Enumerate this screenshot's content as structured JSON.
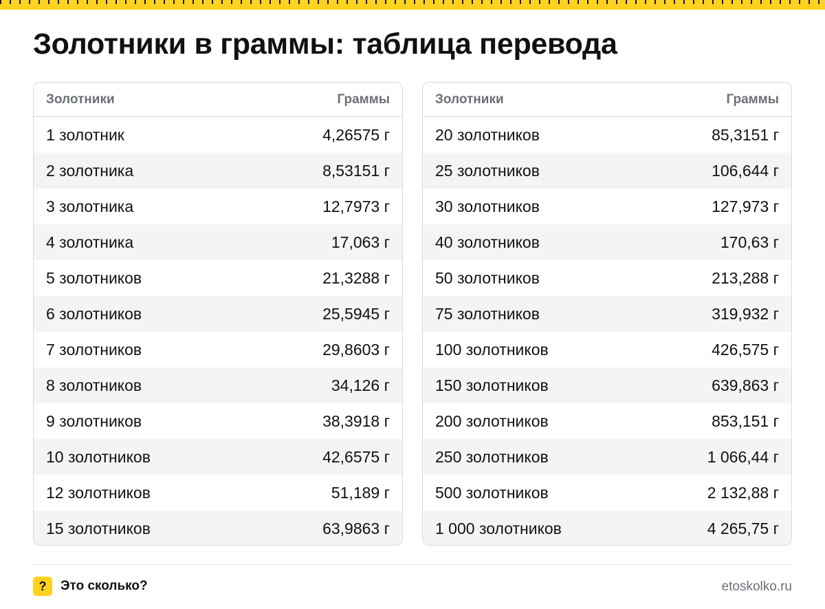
{
  "title": "Золотники в граммы: таблица перевода",
  "colors": {
    "accent": "#ffd21f",
    "header_text": "#6b7076",
    "stripe": "#f3f4f6",
    "border": "#d6d9de"
  },
  "tables": [
    {
      "header": {
        "from": "Золотники",
        "to": "Граммы"
      },
      "rows": [
        {
          "from": "1 золотник",
          "to": "4,26575 г"
        },
        {
          "from": "2 золотника",
          "to": "8,53151 г"
        },
        {
          "from": "3 золотника",
          "to": "12,7973 г"
        },
        {
          "from": "4 золотника",
          "to": "17,063 г"
        },
        {
          "from": "5 золотников",
          "to": "21,3288 г"
        },
        {
          "from": "6 золотников",
          "to": "25,5945 г"
        },
        {
          "from": "7 золотников",
          "to": "29,8603 г"
        },
        {
          "from": "8 золотников",
          "to": "34,126 г"
        },
        {
          "from": "9 золотников",
          "to": "38,3918 г"
        },
        {
          "from": "10 золотников",
          "to": "42,6575 г"
        },
        {
          "from": "12 золотников",
          "to": "51,189 г"
        },
        {
          "from": "15 золотников",
          "to": "63,9863 г"
        }
      ]
    },
    {
      "header": {
        "from": "Золотники",
        "to": "Граммы"
      },
      "rows": [
        {
          "from": "20 золотников",
          "to": "85,3151 г"
        },
        {
          "from": "25 золотников",
          "to": "106,644 г"
        },
        {
          "from": "30 золотников",
          "to": "127,973 г"
        },
        {
          "from": "40 золотников",
          "to": "170,63 г"
        },
        {
          "from": "50 золотников",
          "to": "213,288 г"
        },
        {
          "from": "75 золотников",
          "to": "319,932 г"
        },
        {
          "from": "100 золотников",
          "to": "426,575 г"
        },
        {
          "from": "150 золотников",
          "to": "639,863 г"
        },
        {
          "from": "200 золотников",
          "to": "853,151 г"
        },
        {
          "from": "250 золотников",
          "to": "1 066,44 г"
        },
        {
          "from": "500 золотников",
          "to": "2 132,88 г"
        },
        {
          "from": "1 000 золотников",
          "to": "4 265,75 г"
        }
      ]
    }
  ],
  "footer": {
    "icon": "question-mark-icon",
    "icon_glyph": "?",
    "brand": "Это сколько?",
    "site": "etoskolko.ru"
  }
}
